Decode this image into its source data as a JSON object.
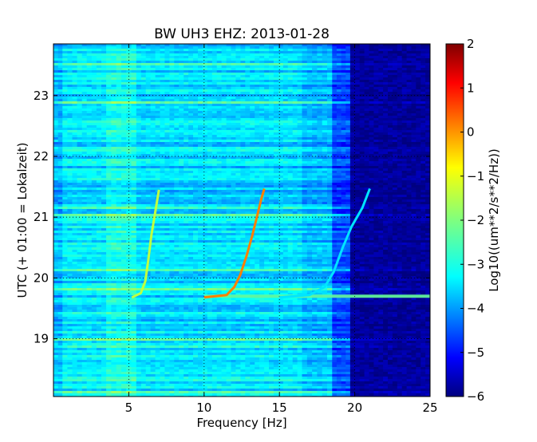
{
  "chart_data": {
    "type": "heatmap",
    "title": "BW UH3 EHZ: 2013-01-28",
    "xlabel": "Frequency [Hz]",
    "ylabel": "UTC (+ 01:00 = Lokalzeit)",
    "xlim": [
      0,
      25
    ],
    "ylim": [
      23.85,
      18.05
    ],
    "x_ticks": [
      5,
      10,
      15,
      20,
      25
    ],
    "y_ticks": [
      19,
      20,
      21,
      22,
      23
    ],
    "grid": true,
    "grid_style": "dotted",
    "colormap": "jet",
    "colorbar": {
      "label": "Log10((um**2/s**2/Hz))",
      "range": [
        -6,
        2
      ],
      "ticks": [
        2,
        1,
        0,
        -1,
        -2,
        -3,
        -4,
        -5,
        -6
      ]
    },
    "background_levels": [
      {
        "freq_range": [
          0,
          0.6
        ],
        "level": -3.6
      },
      {
        "freq_range": [
          0.6,
          3.5
        ],
        "level": -3.2
      },
      {
        "freq_range": [
          3.5,
          5.5
        ],
        "level": -2.9
      },
      {
        "freq_range": [
          5.5,
          16.5
        ],
        "level": -3.3
      },
      {
        "freq_range": [
          16.5,
          18.5
        ],
        "level": -3.6
      },
      {
        "freq_range": [
          18.5,
          19.7
        ],
        "level": -4.5
      },
      {
        "freq_range": [
          19.7,
          25
        ],
        "level": -5.8
      }
    ],
    "series": [
      {
        "x": [
          5.2,
          5.8,
          6.1,
          6.3,
          6.5,
          6.7,
          6.9,
          7.0
        ],
        "y": [
          19.68,
          19.75,
          19.95,
          20.3,
          20.7,
          21.0,
          21.3,
          21.45
        ],
        "level": -1.5
      },
      {
        "x": [
          10.0,
          11.5,
          12.0,
          12.4,
          12.8,
          13.2,
          13.5,
          13.8,
          14.0
        ],
        "y": [
          19.68,
          19.72,
          19.85,
          20.05,
          20.35,
          20.7,
          21.0,
          21.3,
          21.47
        ],
        "level": 0.0
      },
      {
        "x": [
          15.0,
          17.0,
          18.0,
          18.6,
          19.2,
          19.8,
          20.5,
          21.0
        ],
        "y": [
          19.68,
          19.72,
          19.85,
          20.1,
          20.5,
          20.85,
          21.15,
          21.47
        ],
        "level": -3.2
      }
    ],
    "horizontal_band": {
      "y": 19.7,
      "freq_range": [
        10,
        25
      ],
      "level": -2.2
    }
  }
}
